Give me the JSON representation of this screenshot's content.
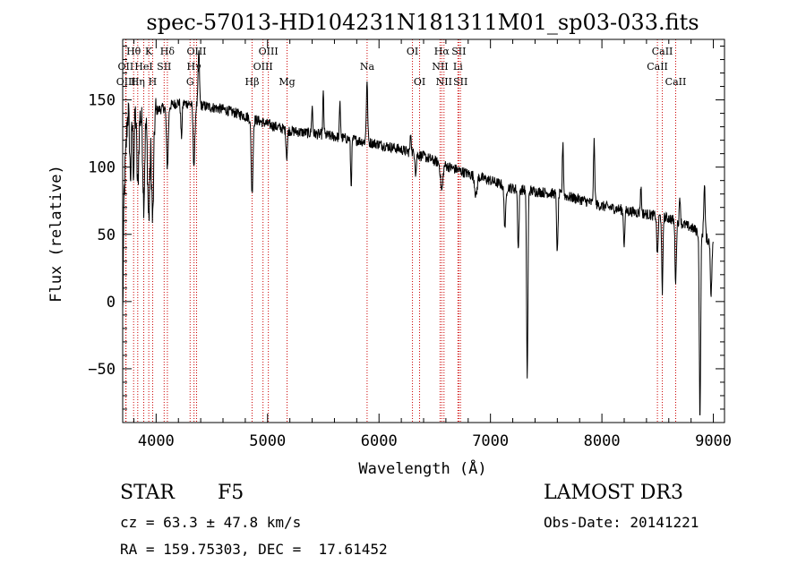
{
  "chart_data": {
    "type": "line",
    "title": "spec-57013-HD104231N181311M01_sp03-033.fits",
    "xlabel": "Wavelength (Å)",
    "ylabel": "Flux (relative)",
    "xlim": [
      3700,
      9100
    ],
    "ylim": [
      -90,
      195
    ],
    "xticks": [
      4000,
      5000,
      6000,
      7000,
      8000,
      9000
    ],
    "yticks": [
      -50,
      0,
      50,
      100,
      150
    ],
    "continuum": [
      [
        3700,
        0
      ],
      [
        3705,
        40
      ],
      [
        3712,
        110
      ],
      [
        3722,
        140
      ],
      [
        3760,
        145
      ],
      [
        3900,
        135
      ],
      [
        4000,
        142
      ],
      [
        4200,
        148
      ],
      [
        4400,
        146
      ],
      [
        4600,
        143
      ],
      [
        4800,
        138
      ],
      [
        5000,
        132
      ],
      [
        5200,
        127
      ],
      [
        5500,
        124
      ],
      [
        5800,
        120
      ],
      [
        6000,
        117
      ],
      [
        6200,
        113
      ],
      [
        6400,
        108
      ],
      [
        6600,
        101
      ],
      [
        6800,
        95
      ],
      [
        7000,
        90
      ],
      [
        7200,
        84
      ],
      [
        7400,
        82
      ],
      [
        7600,
        80
      ],
      [
        7800,
        76
      ],
      [
        8000,
        71
      ],
      [
        8200,
        68
      ],
      [
        8400,
        65
      ],
      [
        8600,
        62
      ],
      [
        8800,
        55
      ],
      [
        8900,
        50
      ],
      [
        9000,
        42
      ]
    ],
    "features": [
      [
        3720,
        -40,
        12
      ],
      [
        3770,
        -50,
        8
      ],
      [
        3798,
        -45,
        6
      ],
      [
        3835,
        -55,
        8
      ],
      [
        3889,
        -60,
        8
      ],
      [
        3934,
        -75,
        10
      ],
      [
        3969,
        -80,
        9
      ],
      [
        4101,
        -45,
        8
      ],
      [
        4227,
        -25,
        6
      ],
      [
        4340,
        -45,
        8
      ],
      [
        4383,
        40,
        6
      ],
      [
        4861,
        -55,
        8
      ],
      [
        5172,
        -20,
        6
      ],
      [
        5400,
        20,
        5
      ],
      [
        5500,
        30,
        5
      ],
      [
        5650,
        25,
        5
      ],
      [
        5750,
        -35,
        5
      ],
      [
        5892,
        45,
        6
      ],
      [
        6285,
        15,
        5
      ],
      [
        6330,
        -15,
        5
      ],
      [
        6563,
        -20,
        10
      ],
      [
        6870,
        -15,
        10
      ],
      [
        7130,
        -30,
        8
      ],
      [
        7250,
        -45,
        6
      ],
      [
        7330,
        -140,
        6
      ],
      [
        7600,
        -45,
        6
      ],
      [
        7650,
        40,
        5
      ],
      [
        7930,
        45,
        6
      ],
      [
        8200,
        -25,
        6
      ],
      [
        8350,
        20,
        5
      ],
      [
        8498,
        -30,
        6
      ],
      [
        8542,
        -60,
        5
      ],
      [
        8662,
        -45,
        6
      ],
      [
        8700,
        20,
        5
      ],
      [
        8880,
        -140,
        6
      ],
      [
        8920,
        40,
        6
      ],
      [
        8980,
        -40,
        6
      ]
    ],
    "noise": {
      "amplitude": 4,
      "low_wavelength_amplitude": 14,
      "step": 3
    },
    "lines": [
      {
        "label": "Hθ",
        "wavelength": 3798,
        "row": 1
      },
      {
        "label": "OII",
        "wavelength": 3727,
        "row": 2
      },
      {
        "label": "OIII",
        "wavelength": 3730,
        "row": 3
      },
      {
        "label": "K",
        "wavelength": 3934,
        "row": 1
      },
      {
        "label": "HeI",
        "wavelength": 3889,
        "row": 2
      },
      {
        "label": "Hη",
        "wavelength": 3835,
        "row": 3
      },
      {
        "label": "H",
        "wavelength": 3969,
        "row": 3
      },
      {
        "label": "Hδ",
        "wavelength": 4101,
        "row": 1
      },
      {
        "label": "SII",
        "wavelength": 4072,
        "row": 2
      },
      {
        "label": "OIII",
        "wavelength": 4363,
        "row": 1
      },
      {
        "label": "Hγ",
        "wavelength": 4340,
        "row": 2
      },
      {
        "label": "G",
        "wavelength": 4305,
        "row": 3
      },
      {
        "label": "OIII",
        "wavelength": 5007,
        "row": 1
      },
      {
        "label": "OIII",
        "wavelength": 4959,
        "row": 2
      },
      {
        "label": "Hβ",
        "wavelength": 4861,
        "row": 3
      },
      {
        "label": "Mg",
        "wavelength": 5175,
        "row": 3
      },
      {
        "label": "Na",
        "wavelength": 5893,
        "row": 2
      },
      {
        "label": "OI",
        "wavelength": 6300,
        "row": 1
      },
      {
        "label": "OI",
        "wavelength": 6364,
        "row": 3
      },
      {
        "label": "Hα",
        "wavelength": 6563,
        "row": 1
      },
      {
        "label": "SII",
        "wavelength": 6716,
        "row": 1
      },
      {
        "label": "NII",
        "wavelength": 6548,
        "row": 2
      },
      {
        "label": "Li",
        "wavelength": 6708,
        "row": 2
      },
      {
        "label": "NII",
        "wavelength": 6583,
        "row": 3
      },
      {
        "label": "SII",
        "wavelength": 6731,
        "row": 3
      },
      {
        "label": "CaII",
        "wavelength": 8542,
        "row": 1
      },
      {
        "label": "CaII",
        "wavelength": 8498,
        "row": 2
      },
      {
        "label": "CaII",
        "wavelength": 8662,
        "row": 3
      }
    ],
    "colors": {
      "spectrum": "#000000",
      "line_marker": "#cc0000",
      "axes": "#000000"
    }
  },
  "footer": {
    "object_type": "STAR",
    "subclass": "F5",
    "survey": "LAMOST DR3",
    "cz": "cz = 63.3 ± 47.8 km/s",
    "obs_date": "Obs-Date: 20141221",
    "coords": "RA = 159.75303, DEC =  17.61452"
  }
}
